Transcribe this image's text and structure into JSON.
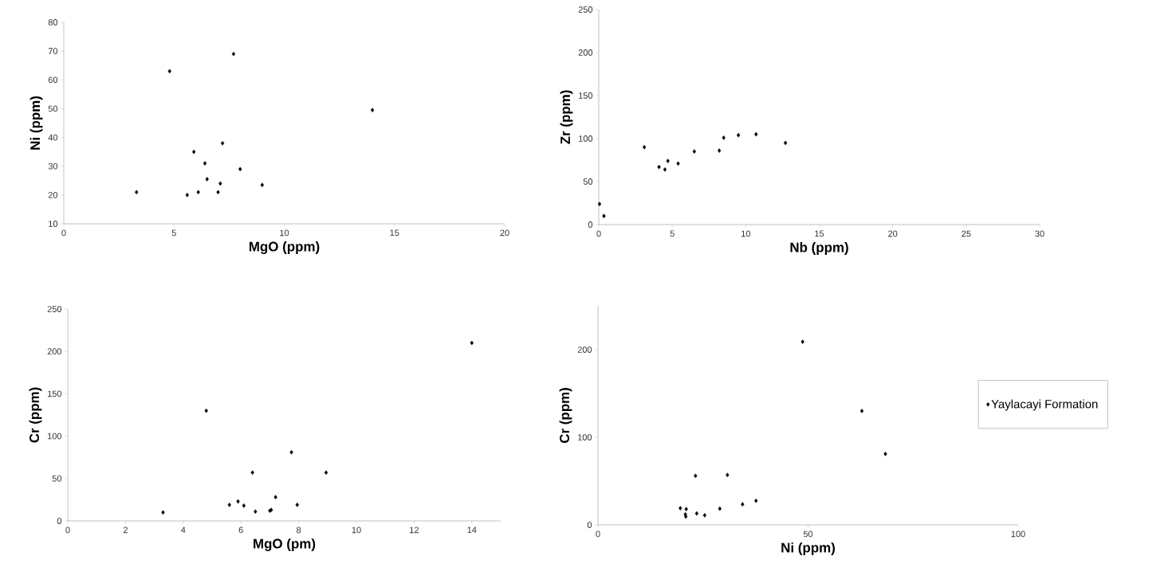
{
  "chart_data": [
    {
      "type": "scatter",
      "xlabel": "MgO (ppm)",
      "ylabel": "Ni (ppm)",
      "xlim": [
        0,
        20
      ],
      "ylim": [
        10,
        80
      ],
      "xticks": [
        0,
        5,
        10,
        15,
        20
      ],
      "yticks": [
        10,
        20,
        30,
        40,
        50,
        60,
        70,
        80
      ],
      "marker": "diamond",
      "grid": false,
      "legend": false,
      "series": [
        {
          "color": "#000000",
          "x": [
            3.3,
            4.8,
            7.7,
            14.0,
            5.9,
            7.2,
            6.4,
            8.0,
            6.5,
            7.1,
            9.0,
            5.6,
            6.1,
            7.0
          ],
          "values": [
            21,
            63,
            69,
            49.5,
            35,
            38,
            31,
            29,
            25.5,
            24,
            23.5,
            20,
            21,
            21
          ]
        }
      ]
    },
    {
      "type": "scatter",
      "xlabel": "Nb (ppm)",
      "ylabel": "Zr (ppm)",
      "xlim": [
        0,
        30
      ],
      "ylim": [
        0,
        250
      ],
      "xticks": [
        0,
        5,
        10,
        15,
        20,
        25,
        30
      ],
      "yticks": [
        0,
        50,
        100,
        150,
        200,
        250
      ],
      "marker": "diamond",
      "grid": false,
      "legend": false,
      "series": [
        {
          "color": "#000000",
          "x": [
            0.05,
            0.35,
            3.1,
            4.1,
            4.5,
            4.7,
            5.4,
            6.5,
            8.2,
            8.5,
            9.5,
            10.7,
            12.7
          ],
          "values": [
            24,
            10,
            90,
            67,
            64,
            74,
            71,
            85,
            86,
            101,
            104,
            105,
            95
          ]
        }
      ]
    },
    {
      "type": "scatter",
      "xlabel": "MgO (pm)",
      "ylabel": "Cr (ppm)",
      "xlim": [
        0,
        15
      ],
      "ylim": [
        0,
        250
      ],
      "xticks": [
        0,
        2,
        4,
        6,
        8,
        10,
        12,
        14
      ],
      "yticks": [
        0,
        50,
        100,
        150,
        200,
        250
      ],
      "marker": "diamond",
      "grid": false,
      "legend": false,
      "series": [
        {
          "color": "#000000",
          "x": [
            3.3,
            4.8,
            14.0,
            7.75,
            8.95,
            6.4,
            7.2,
            5.9,
            5.6,
            6.1,
            7.95,
            6.5,
            7.0,
            7.05
          ],
          "values": [
            10,
            130,
            210,
            81,
            57,
            57,
            28,
            23,
            19,
            18,
            19,
            11,
            12,
            13
          ]
        }
      ]
    },
    {
      "type": "scatter",
      "xlabel": "Ni (ppm)",
      "ylabel": "Cr (ppm)",
      "xlim": [
        0,
        100
      ],
      "ylim": [
        0,
        250
      ],
      "xticks": [
        0,
        50,
        100
      ],
      "yticks": [
        0,
        100,
        200
      ],
      "marker": "diamond",
      "grid": false,
      "legend": "right",
      "series": [
        {
          "name": "Yaylacayi Formation",
          "color": "#000000",
          "x": [
            48.7,
            62.8,
            68.4,
            23.2,
            30.8,
            19.6,
            21.0,
            20.8,
            20.9,
            23.5,
            25.4,
            29.0,
            34.4,
            37.6
          ],
          "values": [
            209,
            130,
            81,
            56,
            57,
            19,
            18,
            12,
            9.5,
            13,
            11,
            18.5,
            23.5,
            27.5
          ]
        }
      ]
    }
  ]
}
